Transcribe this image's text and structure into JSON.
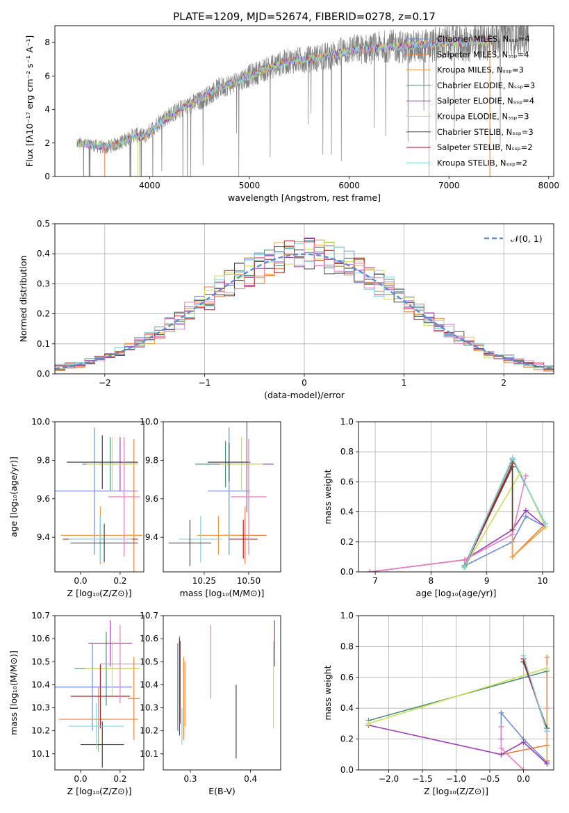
{
  "figure_title": "PLATE=1209, MJD=52674, FIBERID=0278, z=0.17",
  "colors": {
    "Chabrier MILES": "#6b8dd6",
    "Salpeter MILES": "#ec7f3a",
    "Kroupa MILES": "#f39c3a",
    "Chabrier ELODIE": "#4d8c7a",
    "Salpeter ELODIE": "#9b3fb5",
    "Kroupa ELODIE": "#c9e05a",
    "Chabrier STELIB": "#444444",
    "Salpeter STELIB": "#b5232a",
    "Kroupa STELIB": "#86d3e0",
    "data": "#808080",
    "normal": "#5b8bd8",
    "grid": "#b0b0b0",
    "pink": "#e77fc0"
  },
  "chart_data": [
    {
      "id": "spectrum",
      "type": "line",
      "title": "PLATE=1209, MJD=52674, FIBERID=0278, z=0.17",
      "xlabel": "wavelength [Angstrom, rest frame]",
      "ylabel": "Flux [fλ10⁻¹⁷ erg cm⁻² s⁻¹ A⁻¹]",
      "xlim": [
        3050,
        8050
      ],
      "ylim": [
        0,
        9
      ],
      "xticks": [
        4000,
        5000,
        6000,
        7000,
        8000
      ],
      "yticks": [
        0,
        2,
        4,
        6,
        8
      ],
      "grid": false,
      "legend_position": "top-right",
      "legend": [
        "Chabrier MILES, Nₛₛₚ=4",
        "Salpeter MILES, Nₛₛₚ=4",
        "Kroupa MILES, Nₛₛₚ=3",
        "Chabrier ELODIE, Nₛₛₚ=3",
        "Salpeter ELODIE, Nₛₛₚ=4",
        "Kroupa ELODIE, Nₛₛₚ=3",
        "Chabrier STELIB, Nₛₛₚ=3",
        "Salpeter STELIB, Nₛₛₚ=2",
        "Kroupa STELIB, Nₛₛₚ=2"
      ],
      "data_curve": {
        "x": [
          3270,
          3400,
          3550,
          3700,
          3850,
          3950,
          4100,
          4300,
          4500,
          4700,
          4850,
          5000,
          5200,
          5400,
          5600,
          5800,
          6000,
          6200,
          6400,
          6600,
          6800,
          7000,
          7200,
          7400,
          7600,
          7800
        ],
        "y": [
          2.0,
          1.9,
          1.7,
          2.0,
          2.5,
          2.4,
          3.3,
          4.0,
          4.5,
          5.3,
          5.6,
          6.0,
          6.5,
          6.9,
          7.0,
          7.2,
          7.6,
          7.6,
          7.8,
          7.7,
          7.8,
          8.0,
          7.9,
          8.1,
          8.5,
          8.4
        ],
        "noise_amplitude": 0.9
      },
      "model_curve": {
        "x": [
          3270,
          3400,
          3550,
          3700,
          3850,
          3950,
          4100,
          4300,
          4500,
          4700,
          4850,
          5000,
          5200,
          5400,
          5600,
          5800,
          6000,
          6200,
          6400,
          6600,
          6800,
          7000,
          7200,
          7400
        ],
        "y": [
          2.0,
          1.9,
          1.8,
          2.0,
          2.4,
          2.4,
          3.2,
          4.0,
          4.6,
          5.3,
          5.6,
          6.0,
          6.5,
          6.9,
          7.0,
          7.2,
          7.5,
          7.6,
          7.7,
          7.8,
          7.9,
          8.0,
          8.0,
          8.1
        ]
      }
    },
    {
      "id": "residuals",
      "type": "histogram",
      "xlabel": "(data-model)/error",
      "ylabel": "Normed distribution",
      "xlim": [
        -2.5,
        2.5
      ],
      "ylim": [
        0,
        0.5
      ],
      "xticks": [
        -2,
        -1,
        0,
        1,
        2
      ],
      "yticks": [
        0.0,
        0.1,
        0.2,
        0.3,
        0.4,
        0.5
      ],
      "grid": true,
      "legend_position": "top-right",
      "legend": [
        "𝒩(0, 1)"
      ],
      "bin_width": 0.1,
      "gaussian": {
        "mean": 0,
        "sigma": 1
      }
    },
    {
      "id": "z-vs-age",
      "type": "errorbar",
      "xlabel": "Z [log₁₀(Z/Z⊙)]",
      "ylabel": "age  [log₁₀(age/yr)]",
      "xlim": [
        -0.13,
        0.32
      ],
      "ylim": [
        9.22,
        10.0
      ],
      "xticks": [
        0.0,
        0.2
      ],
      "yticks": [
        9.4,
        9.6,
        9.8,
        10.0
      ],
      "points": [
        {
          "model": "Chabrier MILES",
          "x": 0.07,
          "xerr": 0.22,
          "y": 9.64,
          "yerr": 0.33
        },
        {
          "model": "Salpeter MILES",
          "x": 0.27,
          "xerr": 0.04,
          "y": 9.41,
          "yerr": 0.5
        },
        {
          "model": "Kroupa MILES",
          "x": 0.1,
          "xerr": 0.2,
          "y": 9.41,
          "yerr": 0.15
        },
        {
          "model": "Chabrier ELODIE",
          "x": 0.15,
          "xerr": 0.14,
          "y": 9.78,
          "yerr": 0.14
        },
        {
          "model": "Salpeter ELODIE",
          "x": 0.2,
          "xerr": 0.09,
          "y": 9.78,
          "yerr": 0.14
        },
        {
          "model": "Kroupa ELODIE",
          "x": 0.16,
          "xerr": 0.13,
          "y": 9.78,
          "yerr": 0.14
        },
        {
          "model": "Chabrier STELIB",
          "x": 0.11,
          "xerr": 0.18,
          "y": 9.79,
          "yerr": 0.14
        },
        {
          "model": "Salpeter STELIB",
          "x": 0.1,
          "xerr": 0.19,
          "y": 9.39,
          "yerr": 0.12
        },
        {
          "model": "Kroupa STELIB",
          "x": 0.1,
          "xerr": 0.16,
          "y": 9.39,
          "yerr": 0.12
        },
        {
          "model": "Chabrier STELIB",
          "x": 0.12,
          "xerr": 0.17,
          "y": 9.37,
          "yerr": 0.1
        },
        {
          "model": "pink",
          "x": 0.22,
          "xerr": 0.08,
          "y": 9.61,
          "yerr": 0.31
        }
      ]
    },
    {
      "id": "mass-vs-age",
      "type": "errorbar",
      "xlabel": "mass [log₁₀(M/M⊙)]",
      "ylabel": "",
      "xlim": [
        10.02,
        10.68
      ],
      "ylim": [
        9.22,
        10.0
      ],
      "xticks": [
        10.25,
        10.5
      ],
      "yticks": [
        9.4,
        9.6,
        9.8,
        10.0
      ],
      "points": [
        {
          "model": "Chabrier MILES",
          "x": 10.39,
          "xerr": 0.12,
          "y": 9.64,
          "yerr": 0.33
        },
        {
          "model": "Salpeter MILES",
          "x": 10.48,
          "xerr": 0.12,
          "y": 9.41,
          "yerr": 0.15
        },
        {
          "model": "Kroupa MILES",
          "x": 10.33,
          "xerr": 0.12,
          "y": 9.41,
          "yerr": 0.1
        },
        {
          "model": "Chabrier ELODIE",
          "x": 10.37,
          "xerr": 0.17,
          "y": 9.78,
          "yerr": 0.12
        },
        {
          "model": "Salpeter ELODIE",
          "x": 10.49,
          "xerr": 0.15,
          "y": 9.78,
          "yerr": 0.25
        },
        {
          "model": "Kroupa ELODIE",
          "x": 10.46,
          "xerr": 0.12,
          "y": 9.78,
          "yerr": 0.14
        },
        {
          "model": "Chabrier STELIB",
          "x": 10.39,
          "xerr": 0.12,
          "y": 9.79,
          "yerr": 0.1
        },
        {
          "model": "Salpeter STELIB",
          "x": 10.47,
          "xerr": 0.08,
          "y": 9.39,
          "yerr": 0.1
        },
        {
          "model": "Kroupa STELIB",
          "x": 10.23,
          "xerr": 0.12,
          "y": 9.39,
          "yerr": 0.12
        },
        {
          "model": "Chabrier STELIB",
          "x": 10.17,
          "xerr": 0.12,
          "y": 9.37,
          "yerr": 0.12
        },
        {
          "model": "pink",
          "x": 10.5,
          "xerr": 0.1,
          "y": 9.61,
          "yerr": 0.3
        }
      ]
    },
    {
      "id": "age-weights",
      "type": "line",
      "xlabel": "age  [log₁₀(age/yr)]",
      "ylabel": "mass weight",
      "xlim": [
        6.7,
        10.2
      ],
      "ylim": [
        0,
        1.0
      ],
      "xticks": [
        7,
        8,
        9,
        10
      ],
      "yticks": [
        0.0,
        0.2,
        0.4,
        0.6,
        0.8,
        1.0
      ],
      "grid": true,
      "series": [
        {
          "model": "Chabrier MILES",
          "x": [
            8.6,
            9.46,
            9.7,
            10.05
          ],
          "y": [
            0.04,
            0.2,
            0.37,
            0.3
          ]
        },
        {
          "model": "Salpeter MILES",
          "x": [
            8.6,
            9.46,
            9.46,
            10.05
          ],
          "y": [
            0.04,
            0.75,
            0.1,
            0.32
          ]
        },
        {
          "model": "Kroupa MILES",
          "x": [
            8.6,
            9.46,
            9.46,
            10.05
          ],
          "y": [
            0.04,
            0.72,
            0.1,
            0.3
          ]
        },
        {
          "model": "Chabrier ELODIE",
          "x": [
            8.6,
            9.46,
            10.05
          ],
          "y": [
            0.04,
            0.75,
            0.32
          ]
        },
        {
          "model": "Salpeter ELODIE",
          "x": [
            6.9,
            8.6,
            9.46,
            9.7,
            10.05
          ],
          "y": [
            0.0,
            0.08,
            0.28,
            0.41,
            0.3
          ]
        },
        {
          "model": "Kroupa ELODIE",
          "x": [
            8.6,
            9.6,
            10.05
          ],
          "y": [
            0.03,
            0.66,
            0.3
          ]
        },
        {
          "model": "Chabrier STELIB",
          "x": [
            8.6,
            9.46,
            9.46
          ],
          "y": [
            0.03,
            0.7,
            0.28
          ]
        },
        {
          "model": "Salpeter STELIB",
          "x": [
            8.6,
            9.46
          ],
          "y": [
            0.03,
            0.72
          ]
        },
        {
          "model": "Kroupa STELIB",
          "x": [
            8.6,
            9.46,
            10.05
          ],
          "y": [
            0.03,
            0.76,
            0.32
          ]
        },
        {
          "model": "pink",
          "x": [
            6.9,
            8.6,
            9.46,
            9.7
          ],
          "y": [
            0.0,
            0.08,
            0.25,
            0.64
          ]
        }
      ]
    },
    {
      "id": "z-vs-mass",
      "type": "errorbar",
      "xlabel": "Z [log₁₀(Z/Z⊙)]",
      "ylabel": "mass [log₁₀(M/M⊙)]",
      "xlim": [
        -0.13,
        0.32
      ],
      "ylim": [
        10.03,
        10.7
      ],
      "xticks": [
        0.0,
        0.2
      ],
      "yticks": [
        10.1,
        10.2,
        10.3,
        10.4,
        10.5,
        10.6,
        10.7
      ],
      "points": [
        {
          "model": "Chabrier MILES",
          "x": 0.06,
          "xerr": 0.2,
          "y": 10.39,
          "yerr": 0.19
        },
        {
          "model": "Salpeter MILES",
          "x": 0.27,
          "xerr": 0.03,
          "y": 10.34,
          "yerr": 0.18
        },
        {
          "model": "Kroupa MILES",
          "x": 0.09,
          "xerr": 0.2,
          "y": 10.25,
          "yerr": 0.14
        },
        {
          "model": "Chabrier ELODIE",
          "x": 0.13,
          "xerr": 0.16,
          "y": 10.47,
          "yerr": 0.16
        },
        {
          "model": "Salpeter ELODIE",
          "x": 0.15,
          "xerr": 0.11,
          "y": 10.58,
          "yerr": 0.1
        },
        {
          "model": "Kroupa ELODIE",
          "x": 0.16,
          "xerr": 0.14,
          "y": 10.47,
          "yerr": 0.12
        },
        {
          "model": "Chabrier STELIB",
          "x": 0.11,
          "xerr": 0.11,
          "y": 10.14,
          "yerr": 0.1
        },
        {
          "model": "Salpeter STELIB",
          "x": 0.1,
          "xerr": 0.15,
          "y": 10.35,
          "yerr": 0.14
        },
        {
          "model": "Kroupa STELIB",
          "x": 0.08,
          "xerr": 0.14,
          "y": 10.22,
          "yerr": 0.1
        },
        {
          "model": "pink",
          "x": 0.2,
          "xerr": 0.1,
          "y": 10.49,
          "yerr": 0.17
        }
      ]
    },
    {
      "id": "ebv-vs-mass",
      "type": "errorbar",
      "xlabel": "E(B-V)",
      "ylabel": "",
      "xlim": [
        0.255,
        0.45
      ],
      "ylim": [
        10.03,
        10.7
      ],
      "xticks": [
        0.3,
        0.4
      ],
      "yticks": [
        10.1,
        10.2,
        10.3,
        10.4,
        10.5,
        10.6,
        10.7
      ],
      "points": [
        {
          "model": "Chabrier MILES",
          "x": 0.279,
          "xerr": 0,
          "y": 10.39,
          "yerr": 0.19
        },
        {
          "model": "Salpeter MILES",
          "x": 0.289,
          "xerr": 0,
          "y": 10.34,
          "yerr": 0.18
        },
        {
          "model": "Kroupa MILES",
          "x": 0.291,
          "xerr": 0,
          "y": 10.36,
          "yerr": 0.14
        },
        {
          "model": "Chabrier ELODIE",
          "x": 0.282,
          "xerr": 0,
          "y": 10.47,
          "yerr": 0.14
        },
        {
          "model": "Salpeter ELODIE",
          "x": 0.44,
          "xerr": 0,
          "y": 10.58,
          "yerr": 0.1
        },
        {
          "model": "Kroupa ELODIE",
          "x": 0.438,
          "xerr": 0,
          "y": 10.4,
          "yerr": 0.19
        },
        {
          "model": "Chabrier STELIB",
          "x": 0.282,
          "xerr": 0,
          "y": 10.39,
          "yerr": 0.21
        },
        {
          "model": "Salpeter STELIB",
          "x": 0.283,
          "xerr": 0,
          "y": 10.41,
          "yerr": 0.18
        },
        {
          "model": "Kroupa STELIB",
          "x": 0.286,
          "xerr": 0,
          "y": 10.22,
          "yerr": 0.08
        },
        {
          "model": "Chabrier STELIB",
          "x": 0.376,
          "xerr": 0,
          "y": 10.24,
          "yerr": 0.16
        },
        {
          "model": "pink",
          "x": 0.334,
          "xerr": 0,
          "y": 10.5,
          "yerr": 0.16
        }
      ]
    },
    {
      "id": "z-weights",
      "type": "line",
      "xlabel": "Z [log₁₀(Z/Z⊙)]",
      "ylabel": "mass weight",
      "xlim": [
        -2.45,
        0.45
      ],
      "ylim": [
        0,
        1.0
      ],
      "xticks": [
        -2.0,
        -1.5,
        -1.0,
        -0.5,
        0.0
      ],
      "yticks": [
        0.0,
        0.2,
        0.4,
        0.6,
        0.8,
        1.0
      ],
      "grid": true,
      "series": [
        {
          "model": "Chabrier MILES",
          "x": [
            -0.33,
            -0.33,
            0.0,
            0.35
          ],
          "y": [
            0.2,
            0.37,
            0.2,
            0.05
          ]
        },
        {
          "model": "Salpeter MILES",
          "x": [
            -0.33,
            0.35,
            0.35
          ],
          "y": [
            0.1,
            0.16,
            0.73
          ]
        },
        {
          "model": "Kroupa MILES",
          "x": [
            0.35,
            0.35
          ],
          "y": [
            0.06,
            0.4
          ]
        },
        {
          "model": "Chabrier ELODIE",
          "x": [
            -2.3,
            0.35
          ],
          "y": [
            0.32,
            0.64
          ]
        },
        {
          "model": "Salpeter ELODIE",
          "x": [
            -2.3,
            -0.33,
            0.0,
            0.35
          ],
          "y": [
            0.29,
            0.1,
            0.18,
            0.04
          ]
        },
        {
          "model": "Kroupa ELODIE",
          "x": [
            -2.3,
            0.35
          ],
          "y": [
            0.3,
            0.66
          ]
        },
        {
          "model": "Chabrier STELIB",
          "x": [
            0.0,
            0.35
          ],
          "y": [
            0.7,
            0.27
          ]
        },
        {
          "model": "Salpeter STELIB",
          "x": [
            0.0,
            0.35
          ],
          "y": [
            0.72,
            0.25
          ]
        },
        {
          "model": "Kroupa STELIB",
          "x": [
            0.0,
            0.35
          ],
          "y": [
            0.74,
            0.25
          ]
        },
        {
          "model": "pink",
          "x": [
            -0.33,
            -0.33,
            0.0
          ],
          "y": [
            0.28,
            0.14,
            0.0
          ]
        }
      ]
    }
  ]
}
